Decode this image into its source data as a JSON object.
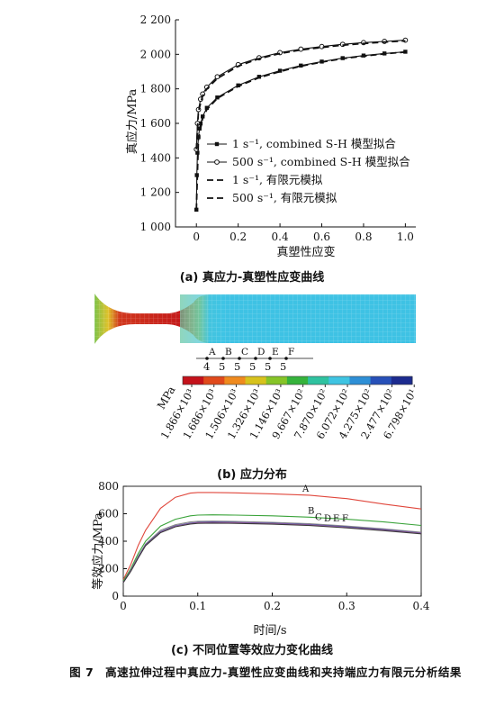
{
  "figure": {
    "caption": "图 7　高速拉伸过程中真应力-真塑性应变曲线和夹持端应力有限元分析结果"
  },
  "panel_a": {
    "caption": "(a) 真应力-真塑性应变曲线",
    "chart_data": {
      "type": "line",
      "xlabel": "真塑性应变",
      "ylabel": "真应力/MPa",
      "xlim": [
        -0.1,
        1.05
      ],
      "ylim": [
        1000,
        2200
      ],
      "x_ticks": [
        "0",
        "0.2",
        "0.4",
        "0.6",
        "0.8",
        "1.0"
      ],
      "y_ticks": [
        "1 000",
        "1 200",
        "1 400",
        "1 600",
        "1 800",
        "2 000",
        "2 200"
      ],
      "grid": false,
      "legend_position": "bottom-right",
      "series": [
        {
          "name": "1 s⁻¹, combined S-H 模型拟合",
          "style": "solid-filled-square",
          "color": "#111111",
          "x": [
            0,
            0.002,
            0.005,
            0.01,
            0.015,
            0.02,
            0.03,
            0.05,
            0.1,
            0.2,
            0.3,
            0.4,
            0.5,
            0.6,
            0.7,
            0.8,
            0.9,
            1.0
          ],
          "y": [
            1100,
            1300,
            1430,
            1520,
            1570,
            1600,
            1640,
            1690,
            1750,
            1820,
            1870,
            1905,
            1935,
            1958,
            1978,
            1993,
            2005,
            2015
          ]
        },
        {
          "name": "500 s⁻¹, combined S-H 模型拟合",
          "style": "solid-open-circle",
          "color": "#111111",
          "x": [
            0,
            0.005,
            0.01,
            0.02,
            0.03,
            0.05,
            0.1,
            0.2,
            0.3,
            0.4,
            0.5,
            0.6,
            0.7,
            0.8,
            0.9,
            1.0
          ],
          "y": [
            1450,
            1600,
            1680,
            1740,
            1770,
            1810,
            1870,
            1940,
            1980,
            2010,
            2030,
            2045,
            2058,
            2068,
            2075,
            2082
          ]
        },
        {
          "name": "1 s⁻¹, 有限元模拟",
          "style": "dashed",
          "color": "#111111",
          "x": [
            0,
            0.01,
            0.03,
            0.05,
            0.1,
            0.2,
            0.3,
            0.4,
            0.5,
            0.6,
            0.7,
            0.8,
            0.9,
            1.0
          ],
          "y": [
            1100,
            1510,
            1630,
            1680,
            1745,
            1815,
            1865,
            1900,
            1932,
            1955,
            1975,
            1990,
            2003,
            2013
          ]
        },
        {
          "name": "500 s⁻¹, 有限元模拟",
          "style": "dashed",
          "color": "#111111",
          "x": [
            0,
            0.01,
            0.03,
            0.05,
            0.1,
            0.2,
            0.3,
            0.4,
            0.5,
            0.6,
            0.7,
            0.8,
            0.9,
            1.0
          ],
          "y": [
            1450,
            1670,
            1760,
            1800,
            1860,
            1932,
            1975,
            2005,
            2025,
            2040,
            2053,
            2063,
            2071,
            2078
          ]
        }
      ]
    }
  },
  "panel_b": {
    "caption": "(b) 应力分布",
    "point_labels": [
      "A",
      "B",
      "C",
      "D",
      "E",
      "F"
    ],
    "element_numbers": [
      "4",
      "5",
      "5",
      "5",
      "5",
      "5",
      "5"
    ],
    "colorbar": {
      "unit_label": "MPa",
      "colors": [
        "#c4121b",
        "#e04a1c",
        "#ef8a1e",
        "#d7c21d",
        "#86c428",
        "#36b33c",
        "#2fc2a0",
        "#3fc4e2",
        "#2e8fd6",
        "#2750b8",
        "#1c2b8f"
      ],
      "tick_labels": [
        "1.866×10³",
        "1.686×10³",
        "1.506×10³",
        "1.326×10³",
        "1.146×10³",
        "9.667×10²",
        "7.870×10²",
        "6.072×10²",
        "4.275×10²",
        "2.477×10²",
        "6.798×10¹"
      ]
    }
  },
  "panel_c": {
    "caption": "(c) 不同位置等效应力变化曲线",
    "chart_data": {
      "type": "line",
      "xlabel": "时间/s",
      "ylabel": "等效应力/MPa",
      "xlim": [
        0,
        0.4
      ],
      "ylim": [
        0,
        800
      ],
      "x_ticks": [
        "0",
        "0.1",
        "0.2",
        "0.3",
        "0.4"
      ],
      "y_ticks": [
        "0",
        "200",
        "400",
        "600",
        "800"
      ],
      "grid": false,
      "series": [
        {
          "name": "A",
          "color": "#e0473c",
          "x": [
            0,
            0.01,
            0.02,
            0.03,
            0.05,
            0.07,
            0.09,
            0.1,
            0.12,
            0.15,
            0.2,
            0.25,
            0.3,
            0.35,
            0.4
          ],
          "y": [
            120,
            230,
            370,
            480,
            640,
            720,
            750,
            755,
            755,
            752,
            745,
            735,
            710,
            670,
            635
          ]
        },
        {
          "name": "B",
          "color": "#3aa33a",
          "x": [
            0,
            0.01,
            0.02,
            0.03,
            0.05,
            0.07,
            0.09,
            0.1,
            0.12,
            0.15,
            0.2,
            0.25,
            0.3,
            0.35,
            0.4
          ],
          "y": [
            110,
            200,
            310,
            400,
            510,
            560,
            585,
            590,
            592,
            590,
            585,
            575,
            560,
            540,
            515
          ]
        },
        {
          "name": "C",
          "color": "#8a8a8a",
          "x": [
            0,
            0.01,
            0.02,
            0.03,
            0.05,
            0.07,
            0.09,
            0.1,
            0.12,
            0.15,
            0.2,
            0.25,
            0.3,
            0.35,
            0.4
          ],
          "y": [
            100,
            190,
            290,
            380,
            480,
            520,
            540,
            545,
            546,
            544,
            538,
            528,
            510,
            490,
            465
          ]
        },
        {
          "name": "D",
          "color": "#4f4f9a",
          "x": [
            0,
            0.01,
            0.02,
            0.03,
            0.05,
            0.07,
            0.09,
            0.1,
            0.12,
            0.15,
            0.2,
            0.25,
            0.3,
            0.35,
            0.4
          ],
          "y": [
            100,
            185,
            285,
            375,
            470,
            512,
            532,
            538,
            540,
            538,
            532,
            522,
            505,
            485,
            460
          ]
        },
        {
          "name": "E",
          "color": "#b060b0",
          "x": [
            0,
            0.01,
            0.02,
            0.03,
            0.05,
            0.07,
            0.09,
            0.1,
            0.12,
            0.15,
            0.2,
            0.25,
            0.3,
            0.35,
            0.4
          ],
          "y": [
            100,
            182,
            280,
            370,
            465,
            508,
            528,
            534,
            536,
            534,
            528,
            518,
            500,
            480,
            457
          ]
        },
        {
          "name": "F",
          "color": "#3a3a3a",
          "x": [
            0,
            0.01,
            0.02,
            0.03,
            0.05,
            0.07,
            0.09,
            0.1,
            0.12,
            0.15,
            0.2,
            0.25,
            0.3,
            0.35,
            0.4
          ],
          "y": [
            100,
            180,
            278,
            368,
            462,
            505,
            525,
            530,
            532,
            530,
            524,
            514,
            497,
            477,
            454
          ]
        }
      ]
    }
  }
}
